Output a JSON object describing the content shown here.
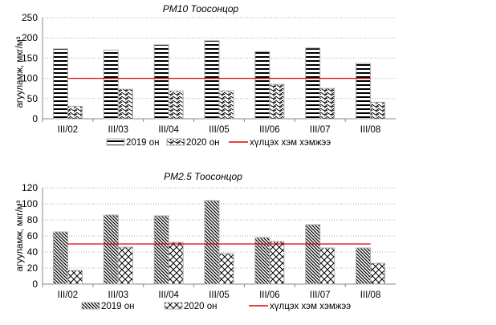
{
  "chart_data": [
    {
      "type": "bar",
      "title": "PM10 Тоосонцор",
      "ylabel": "агууламж, мкг/м³",
      "xlabel": "",
      "ylim": [
        0,
        250
      ],
      "yticks": [
        0,
        50,
        100,
        150,
        200,
        250
      ],
      "grid": true,
      "legend_placement": "bottom",
      "categories": [
        "III/02",
        "III/03",
        "III/04",
        "III/05",
        "III/06",
        "III/07",
        "III/08"
      ],
      "series": [
        {
          "name": "2019 он",
          "pattern": "horizontal",
          "values": [
            173,
            170,
            183,
            193,
            166,
            175,
            137
          ]
        },
        {
          "name": "2020 он",
          "pattern": "scales",
          "values": [
            31,
            73,
            69,
            69,
            85,
            75,
            41
          ]
        }
      ],
      "threshold": {
        "name": "хүлцэх хэм хэмжээ",
        "value": 100,
        "color": "#e00000"
      }
    },
    {
      "type": "bar",
      "title": "PM2.5 Тоосонцор",
      "ylabel": "агууламж, мкг/м³",
      "xlabel": "",
      "ylim": [
        0,
        120
      ],
      "yticks": [
        0,
        20,
        40,
        60,
        80,
        100,
        120
      ],
      "grid": true,
      "legend_placement": "bottom",
      "categories": [
        "III/02",
        "III/03",
        "III/04",
        "III/05",
        "III/06",
        "III/07",
        "III/08"
      ],
      "series": [
        {
          "name": "2019 он",
          "pattern": "diagonal",
          "values": [
            65,
            86,
            85,
            104,
            58,
            74,
            45
          ]
        },
        {
          "name": "2020 он",
          "pattern": "crosshatch",
          "values": [
            17,
            46,
            52,
            38,
            53,
            45,
            26
          ]
        }
      ],
      "threshold": {
        "name": "хүлцэх хэм хэмжээ",
        "value": 50,
        "color": "#e00000"
      }
    }
  ]
}
